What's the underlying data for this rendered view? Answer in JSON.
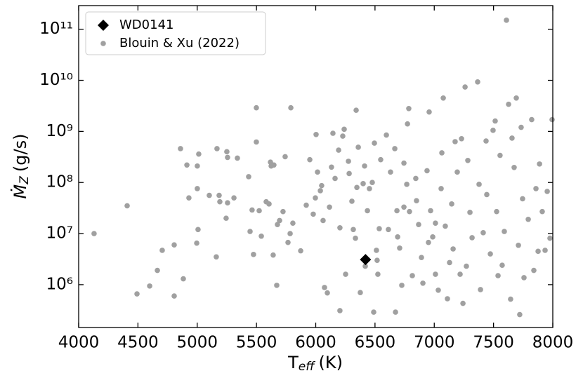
{
  "chart_data": {
    "type": "scatter",
    "xlabel": "T",
    "xlabel_sub": "eff",
    "xlabel_unit": "(K)",
    "ylabel": "Ṁ",
    "ylabel_sub": "Z",
    "ylabel_unit": "(g/s)",
    "xlim": [
      4000,
      8000
    ],
    "xticks": [
      4000,
      4500,
      5000,
      5500,
      6000,
      6500,
      7000,
      7500,
      8000
    ],
    "ylim": [
      145000,
      290000000000
    ],
    "yscale": "log",
    "yticks": [
      {
        "value": 1000000,
        "label": "10⁶"
      },
      {
        "value": 10000000,
        "label": "10⁷"
      },
      {
        "value": 100000000,
        "label": "10⁸"
      },
      {
        "value": 1000000000,
        "label": "10⁹"
      },
      {
        "value": 10000000000,
        "label": "10¹⁰"
      },
      {
        "value": 100000000000,
        "label": "10¹¹"
      }
    ],
    "legend": "upper left",
    "series": [
      {
        "name": "WD0141",
        "color": "#000000",
        "marker": "diamond",
        "x": [
          6420
        ],
        "values": [
          3100000
        ]
      },
      {
        "name": "Blouin & Xu (2022)",
        "color": "#a0a0a0",
        "marker": "circle",
        "x": [
          4130,
          4409,
          4492,
          4599,
          4664,
          4705,
          4806,
          4806,
          4859,
          4883,
          4913,
          4930,
          5001,
          5001,
          5013,
          4996,
          5007,
          5102,
          5167,
          5161,
          5185,
          5191,
          5250,
          5256,
          5244,
          5256,
          5310,
          5339,
          5434,
          5463,
          5446,
          5475,
          5499,
          5499,
          5523,
          5541,
          5582,
          5606,
          5618,
          5624,
          5647,
          5641,
          5671,
          5677,
          5695,
          5724,
          5742,
          5766,
          5784,
          5790,
          5807,
          5873,
          5920,
          5950,
          5979,
          6003,
          6015,
          5997,
          6039,
          6050,
          6062,
          6074,
          6098,
          6116,
          6133,
          6145,
          6163,
          6193,
          6204,
          6204,
          6228,
          6240,
          6252,
          6276,
          6282,
          6305,
          6317,
          6335,
          6341,
          6347,
          6359,
          6376,
          6400,
          6412,
          6436,
          6453,
          6477,
          6489,
          6495,
          6512,
          6518,
          6524,
          6536,
          6548,
          6596,
          6613,
          6631,
          6667,
          6673,
          6691,
          6708,
          6726,
          6744,
          6768,
          6774,
          6785,
          6791,
          6815,
          6844,
          6868,
          6892,
          6904,
          6939,
          6957,
          6969,
          6987,
          7010,
          7034,
          7058,
          7064,
          7076,
          7093,
          7111,
          7129,
          7147,
          7176,
          7194,
          7218,
          7230,
          7242,
          7260,
          7271,
          7283,
          7301,
          7319,
          7366,
          7378,
          7390,
          7413,
          7437,
          7443,
          7473,
          7496,
          7514,
          7526,
          7538,
          7555,
          7573,
          7591,
          7609,
          7627,
          7644,
          7656,
          7674,
          7692,
          7710,
          7721,
          7733,
          7745,
          7757,
          7793,
          7822,
          7840,
          7858,
          7876,
          7888,
          7911,
          7935,
          7953,
          7976,
          7994,
          6685,
          6744,
          6850,
          6951,
          7010,
          7159,
          6418
        ],
        "values": [
          10000000,
          35000000,
          660000,
          940000,
          1900000,
          4700000,
          6000000,
          600000,
          460000000,
          1300000,
          220000000,
          50000000,
          76000000,
          210000000,
          360000000,
          6500000,
          12000000,
          56000000,
          460000000,
          3500000,
          56000000,
          42000000,
          400000000,
          310000000,
          20000000,
          40000000,
          50000000,
          300000000,
          130000000,
          29000000,
          11000000,
          3900000,
          2900000000,
          620000000,
          28000000,
          8900000,
          42000000,
          38000000,
          250000000,
          210000000,
          220000000,
          3800000,
          970000,
          15000000,
          18000000,
          27000000,
          320000000,
          6700000,
          10000000,
          2900000000,
          16000000,
          4600000,
          36000000,
          280000000,
          24000000,
          870000000,
          160000000,
          50000000,
          69000000,
          87000000,
          18000000,
          880000,
          690000,
          33000000,
          200000000,
          920000000,
          120000000,
          430000000,
          310000,
          13000000,
          810000000,
          1100000000,
          1600000,
          260000000,
          150000000,
          43000000,
          12000000,
          8100000,
          2600000000,
          80000000,
          490000000,
          700000,
          95000000,
          210000000,
          28000000,
          76000000,
          100000000,
          290000,
          590000000,
          4700000,
          3000000,
          1600000,
          12500000,
          280000000,
          850000000,
          12000000,
          160000000,
          460000000,
          290000,
          8600000,
          5200000,
          970000,
          240000000,
          92000000,
          1400000000,
          2800000000,
          27000000,
          1500000,
          120000000,
          15000000,
          3400000,
          1070000,
          170000000,
          2400000000,
          28000000,
          8600000,
          1600000,
          780000,
          76000000,
          380000000,
          4500000000,
          14000000,
          530000,
          2700000,
          38000000,
          630000000,
          160000000,
          1600000,
          720000000,
          430000,
          7400000000,
          2300000,
          270000000,
          26000000,
          8300000,
          9300000000,
          92000000,
          800000,
          10400000,
          650000000,
          58000000,
          4000000,
          1050000000,
          1600000000,
          27000000,
          1500000,
          340000000,
          2400000,
          11000000,
          150000000000,
          3400000000,
          520000,
          740000000,
          197000000,
          4500000000,
          5900000,
          260000,
          1200000000,
          48000000,
          1370000,
          19000000,
          1700000000,
          1900000,
          76000000,
          4500000,
          230000000,
          27000000,
          4700000,
          67000000,
          8100000,
          1700000000,
          28000000,
          33000000,
          44000000,
          6700000,
          16000000,
          5000000,
          2300000
        ]
      }
    ]
  }
}
